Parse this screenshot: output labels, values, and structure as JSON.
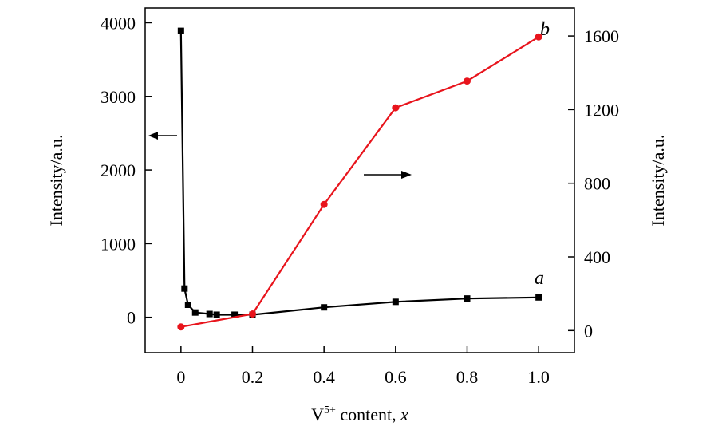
{
  "chart_data": {
    "type": "line",
    "title": "",
    "xlabel": {
      "main": "V",
      "sup": "5+",
      "rest": " content, ",
      "var": "x"
    },
    "ylabel_left": "Intensity/a.u.",
    "ylabel_right": "Intensity/a.u.",
    "xlim": [
      -0.1,
      1.1
    ],
    "ylim_left": [
      -480,
      4200
    ],
    "ylim_right": [
      -120,
      1752
    ],
    "x_ticks": [
      0,
      0.2,
      0.4,
      0.6,
      0.8,
      1.0
    ],
    "x_tick_labels": [
      "0",
      "0.2",
      "0.4",
      "0.6",
      "0.8",
      "1.0"
    ],
    "y_left_ticks": [
      0,
      1000,
      2000,
      3000,
      4000
    ],
    "y_left_tick_labels": [
      "0",
      "1000",
      "2000",
      "3000",
      "4000"
    ],
    "y_right_ticks": [
      0,
      400,
      800,
      1200,
      1600
    ],
    "y_right_tick_labels": [
      "0",
      "400",
      "800",
      "1200",
      "1600"
    ],
    "grid": false,
    "series": [
      {
        "name": "a",
        "axis": "left",
        "color": "#000000",
        "marker": "square",
        "x": [
          0,
          0.01,
          0.02,
          0.04,
          0.08,
          0.1,
          0.15,
          0.2,
          0.4,
          0.6,
          0.8,
          1.0
        ],
        "y": [
          3890,
          390,
          170,
          65,
          45,
          35,
          35,
          35,
          135,
          210,
          255,
          270
        ]
      },
      {
        "name": "b",
        "axis": "right",
        "color": "#e8141c",
        "marker": "circle",
        "x": [
          0,
          0.2,
          0.4,
          0.6,
          0.8,
          1.0
        ],
        "y": [
          20,
          90,
          685,
          1210,
          1355,
          1595
        ]
      }
    ],
    "annotations": [
      {
        "type": "arrow",
        "direction": "left",
        "meaning": "series a uses left axis"
      },
      {
        "type": "arrow",
        "direction": "right",
        "meaning": "series b uses right axis"
      }
    ]
  }
}
